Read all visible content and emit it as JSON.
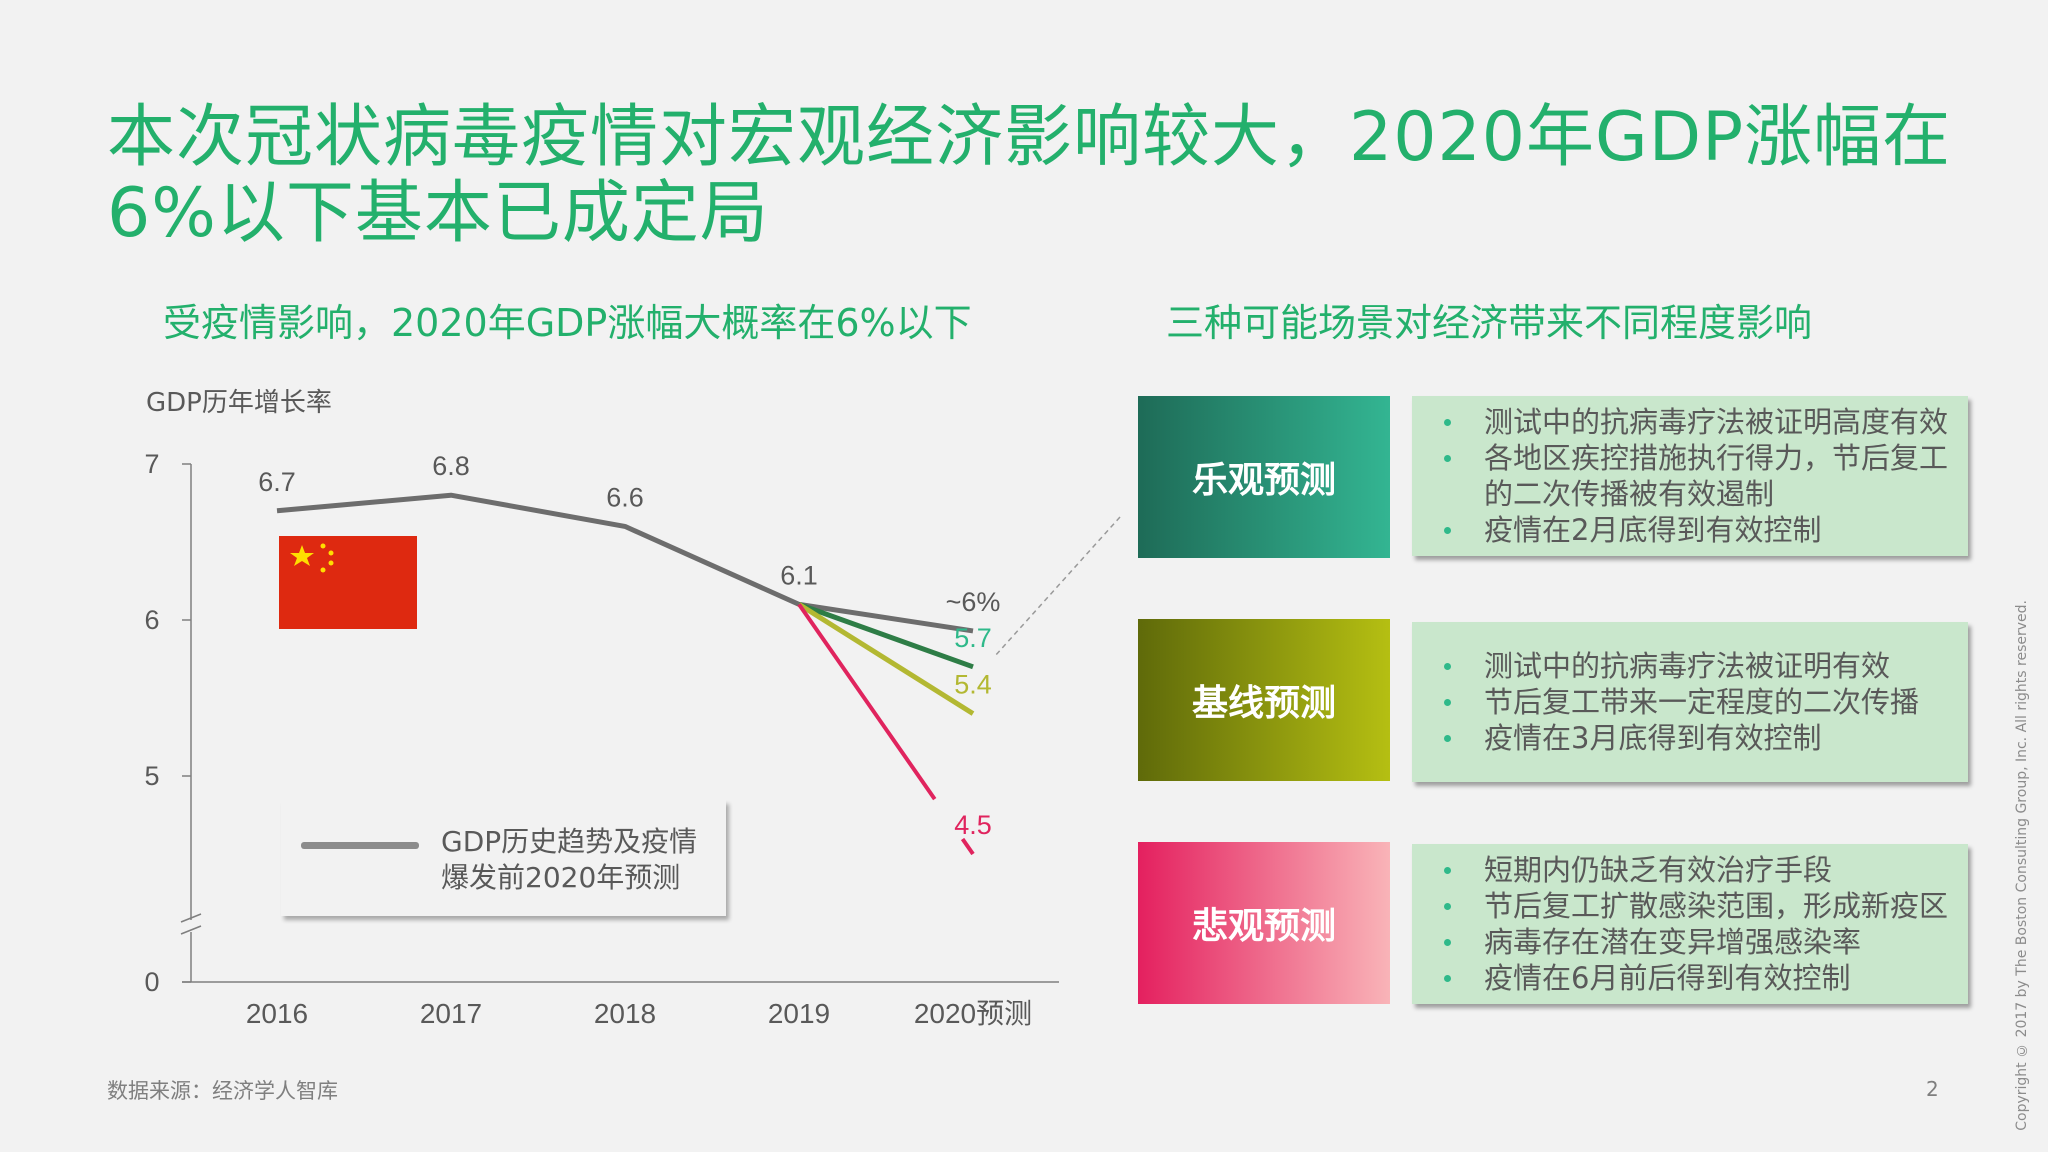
{
  "title": "本次冠状病毒疫情对宏观经济影响较大，2020年GDP涨幅在6%以下基本已成定局",
  "left_subtitle": "受疫情影响，2020年GDP涨幅大概率在6%以下",
  "right_subtitle": "三种可能场景对经济带来不同程度影响",
  "chart_data": {
    "type": "line",
    "ylabel": "GDP历年增长率",
    "categories": [
      "2016",
      "2017",
      "2018",
      "2019",
      "2020预测"
    ],
    "y_ticks": [
      "7",
      "6",
      "5",
      "0"
    ],
    "y_axis_broken": true,
    "grid": false,
    "series": [
      {
        "name": "GDP历史趋势及疫情爆发前2020年预测",
        "color": "#6d6d6d",
        "values": [
          6.7,
          6.8,
          6.6,
          6.1,
          5.93
        ],
        "labels": [
          "6.7",
          "6.8",
          "6.6",
          "6.1",
          "~6%"
        ],
        "label_color": "#595959"
      },
      {
        "color": "#2e7d46",
        "values": [
          null,
          null,
          null,
          6.1,
          5.7
        ],
        "labels": [
          null,
          null,
          null,
          null,
          "5.7"
        ],
        "label_color": "#2fb98a"
      },
      {
        "color": "#b3b832",
        "values": [
          null,
          null,
          null,
          6.1,
          5.4
        ],
        "labels": [
          null,
          null,
          null,
          null,
          "5.4"
        ],
        "label_color": "#b3b832"
      },
      {
        "color": "#e0245e",
        "values": [
          null,
          null,
          null,
          6.1,
          4.5
        ],
        "labels": [
          null,
          null,
          null,
          null,
          "4.5"
        ],
        "label_color": "#e0245e"
      }
    ],
    "legend": {
      "label": "GDP历史趋势及疫情爆发前2020年预测",
      "line1": "GDP历史趋势及疫情",
      "line2": "爆发前2020年预测",
      "placement": "bottom-left"
    }
  },
  "flag": "china-flag",
  "scenarios": [
    {
      "label": "乐观预测",
      "gradient": [
        "#1e6b57",
        "#33b592"
      ],
      "bullets": [
        "测试中的抗病毒疗法被证明高度有效",
        "各地区疾控措施执行得力，节后复工的二次传播被有效遏制",
        "疫情在2月底得到有效控制"
      ]
    },
    {
      "label": "基线预测",
      "gradient": [
        "#5f6a0a",
        "#b5bf12"
      ],
      "bullets": [
        "测试中的抗病毒疗法被证明有效",
        "节后复工带来一定程度的二次传播",
        "疫情在3月底得到有效控制"
      ]
    },
    {
      "label": "悲观预测",
      "gradient": [
        "#e4205f",
        "#f9b4b8"
      ],
      "bullets": [
        "短期内仍缺乏有效治疗手段",
        "节后复工扩散感染范围，形成新疫区",
        "病毒存在潜在变异增强感染率",
        "疫情在6月前后得到有效控制"
      ]
    }
  ],
  "source": "数据来源：经济学人智库",
  "page_number": "2",
  "copyright": "Copyright © 2017 by The Boston Consulting Group, Inc. All rights reserved."
}
